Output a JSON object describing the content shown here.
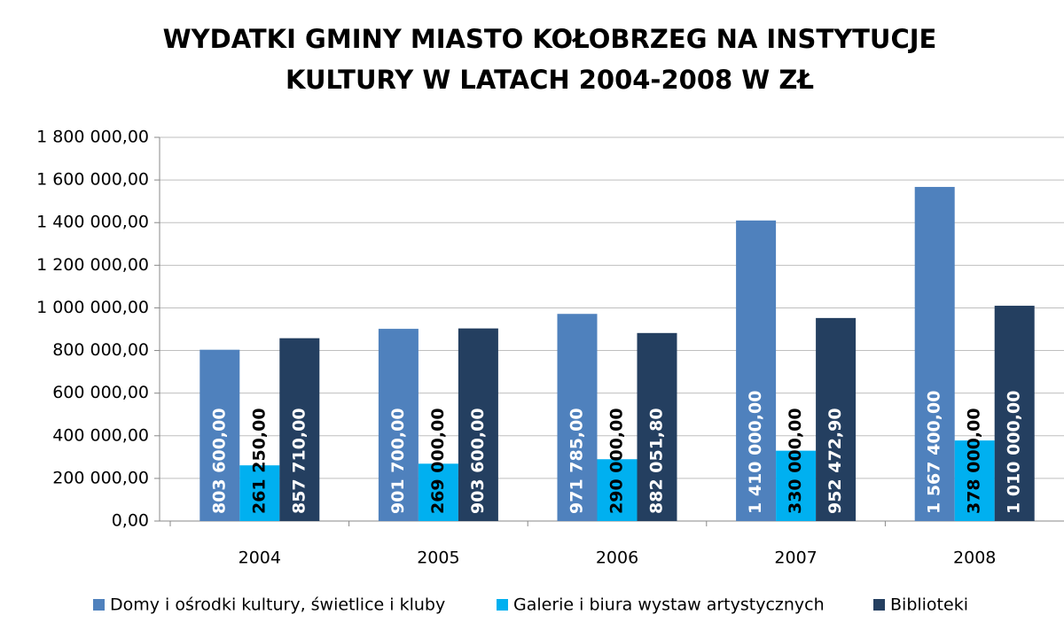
{
  "chart_data": {
    "type": "bar",
    "title": [
      "WYDATKI GMINY MIASTO KOŁOBRZEG NA INSTYTUCJE",
      "KULTURY W LATACH 2004-2008 W ZŁ"
    ],
    "categories": [
      "2004",
      "2005",
      "2006",
      "2007",
      "2008"
    ],
    "series": [
      {
        "name": "Domy i ośrodki kultury, świetlice i kluby",
        "color": "#4f81bd",
        "values": [
          803600,
          901700,
          971785,
          1410000,
          1567400
        ],
        "value_labels": [
          "803 600,00",
          "901 700,00",
          "971 785,00",
          "1 410 000,00",
          "1 567 400,00"
        ]
      },
      {
        "name": "Galerie i biura wystaw artystycznych",
        "color": "#00b0f0",
        "values": [
          261250,
          269000,
          290000,
          330000,
          378000
        ],
        "value_labels": [
          "261 250,00",
          "269 000,00",
          "290 000,00",
          "330 000,00",
          "378 000,00"
        ]
      },
      {
        "name": "Biblioteki",
        "color": "#243f60",
        "values": [
          857710,
          903600,
          882051.8,
          952472.9,
          1010000
        ],
        "value_labels": [
          "857 710,00",
          "903 600,00",
          "882 051,80",
          "952 472,90",
          "1 010 000,00"
        ]
      }
    ],
    "ylim": [
      0,
      1800000
    ],
    "yticks": [
      {
        "value": 0,
        "label": "0,00"
      },
      {
        "value": 200000,
        "label": "200 000,00"
      },
      {
        "value": 400000,
        "label": "400 000,00"
      },
      {
        "value": 600000,
        "label": "600 000,00"
      },
      {
        "value": 800000,
        "label": "800 000,00"
      },
      {
        "value": 1000000,
        "label": "1 000 000,00"
      },
      {
        "value": 1200000,
        "label": "1 200 000,00"
      },
      {
        "value": 1400000,
        "label": "1 400 000,00"
      },
      {
        "value": 1600000,
        "label": "1 600 000,00"
      },
      {
        "value": 1800000,
        "label": "1 800 000,00"
      }
    ],
    "grid": true,
    "legend": "bottom"
  }
}
